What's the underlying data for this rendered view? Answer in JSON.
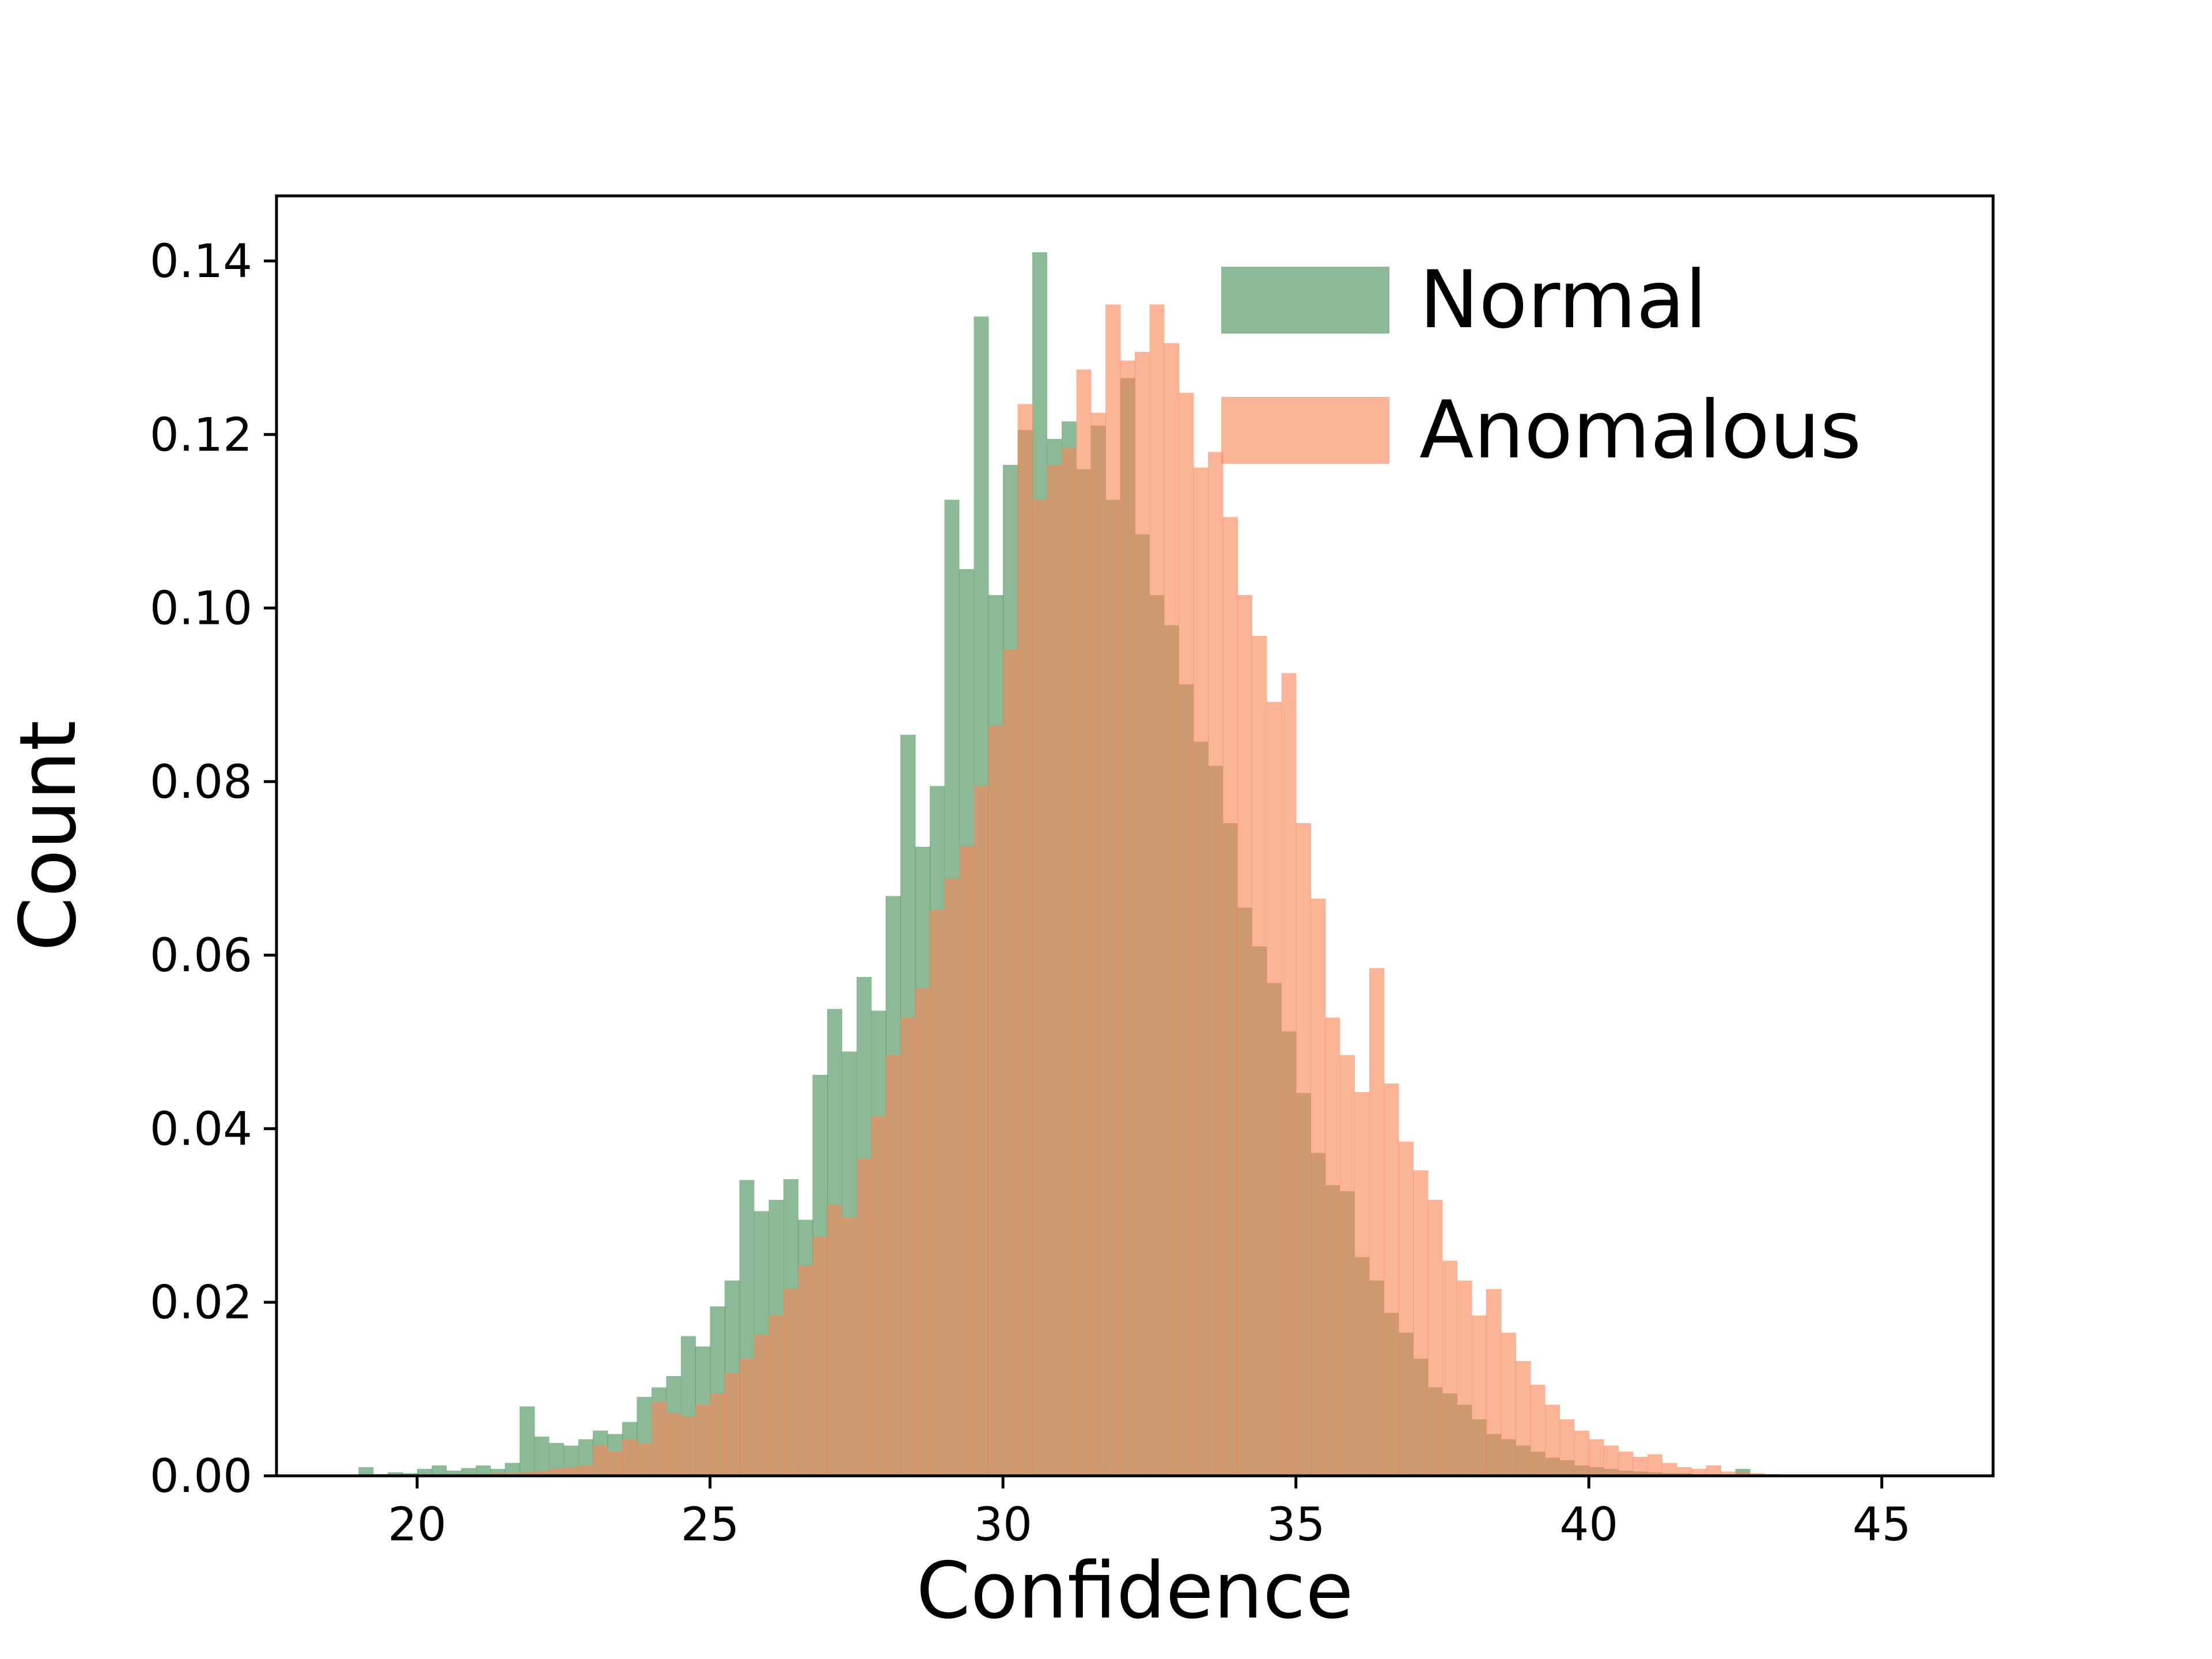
{
  "figure": {
    "background": "#ffffff"
  },
  "chart_data": {
    "type": "histogram",
    "title": "",
    "xlabel": "Confidence",
    "ylabel": "Count",
    "xlim": [
      17.6,
      46.9
    ],
    "ylim": [
      0,
      0.1475
    ],
    "grid": false,
    "legend_position": "upper right",
    "bar_opacity": 0.62,
    "bin_width": 0.25,
    "bin_start": 19.0,
    "xticks": [
      {
        "value": 20,
        "label": "20"
      },
      {
        "value": 25,
        "label": "25"
      },
      {
        "value": 30,
        "label": "30"
      },
      {
        "value": 35,
        "label": "35"
      },
      {
        "value": 40,
        "label": "40"
      },
      {
        "value": 45,
        "label": "45"
      }
    ],
    "yticks": [
      {
        "value": 0.0,
        "label": "0.00"
      },
      {
        "value": 0.02,
        "label": "0.02"
      },
      {
        "value": 0.04,
        "label": "0.04"
      },
      {
        "value": 0.06,
        "label": "0.06"
      },
      {
        "value": 0.08,
        "label": "0.08"
      },
      {
        "value": 0.1,
        "label": "0.10"
      },
      {
        "value": 0.12,
        "label": "0.12"
      },
      {
        "value": 0.14,
        "label": "0.14"
      }
    ],
    "series": [
      {
        "name": "Normal",
        "color": "#458f57",
        "values": [
          0.001,
          0.0002,
          0.0004,
          0.0003,
          0.0008,
          0.0012,
          0.0006,
          0.0009,
          0.0012,
          0.0008,
          0.0015,
          0.008,
          0.0045,
          0.0038,
          0.0035,
          0.0042,
          0.0052,
          0.0048,
          0.0062,
          0.0091,
          0.0102,
          0.0115,
          0.0161,
          0.0149,
          0.0195,
          0.0225,
          0.0341,
          0.0305,
          0.0318,
          0.0342,
          0.0295,
          0.0462,
          0.0538,
          0.0489,
          0.0575,
          0.0536,
          0.0668,
          0.0854,
          0.0725,
          0.0795,
          0.1125,
          0.1045,
          0.1336,
          0.1015,
          0.1165,
          0.1205,
          0.141,
          0.1195,
          0.1215,
          0.116,
          0.121,
          0.1125,
          0.1265,
          0.1085,
          0.1015,
          0.098,
          0.0912,
          0.0846,
          0.0818,
          0.0752,
          0.0655,
          0.061,
          0.0568,
          0.0512,
          0.0441,
          0.0372,
          0.0335,
          0.0328,
          0.0252,
          0.0225,
          0.0188,
          0.0165,
          0.0135,
          0.0102,
          0.0095,
          0.0082,
          0.0065,
          0.0048,
          0.0042,
          0.0035,
          0.0028,
          0.0021,
          0.0018,
          0.0012,
          0.001,
          0.0008,
          0.0006,
          0.0005,
          0.0004,
          0.0003,
          0.0003,
          0.0002,
          0.0002,
          0.0001,
          0.0008,
          0,
          0,
          0,
          0,
          0
        ]
      },
      {
        "name": "Anomalous",
        "color": "#fa865a",
        "values": [
          0,
          0,
          0,
          0,
          0,
          0,
          0,
          0,
          0.0002,
          0.0003,
          0.0003,
          0.0004,
          0.0006,
          0.0008,
          0.001,
          0.0012,
          0.0035,
          0.0028,
          0.0042,
          0.0038,
          0.0085,
          0.0072,
          0.0068,
          0.0082,
          0.0095,
          0.0118,
          0.0135,
          0.0162,
          0.0185,
          0.0215,
          0.0242,
          0.0275,
          0.0312,
          0.0298,
          0.0365,
          0.0415,
          0.0485,
          0.0528,
          0.0562,
          0.0652,
          0.0688,
          0.0725,
          0.0795,
          0.0865,
          0.0952,
          0.1235,
          0.1125,
          0.1165,
          0.1185,
          0.1275,
          0.1225,
          0.135,
          0.1285,
          0.1295,
          0.135,
          0.1305,
          0.1248,
          0.1162,
          0.118,
          0.1105,
          0.1015,
          0.0968,
          0.0892,
          0.0925,
          0.0752,
          0.0665,
          0.0528,
          0.0485,
          0.0442,
          0.0585,
          0.0452,
          0.0385,
          0.0352,
          0.0318,
          0.0248,
          0.0225,
          0.0185,
          0.0215,
          0.0165,
          0.0132,
          0.0105,
          0.0082,
          0.0065,
          0.0052,
          0.0042,
          0.0035,
          0.0028,
          0.0022,
          0.0025,
          0.0015,
          0.001,
          0.0008,
          0.0012,
          0.0005,
          0.0004,
          0.0003,
          0.0002,
          0.0001,
          0.0001,
          0.0001
        ]
      }
    ]
  }
}
